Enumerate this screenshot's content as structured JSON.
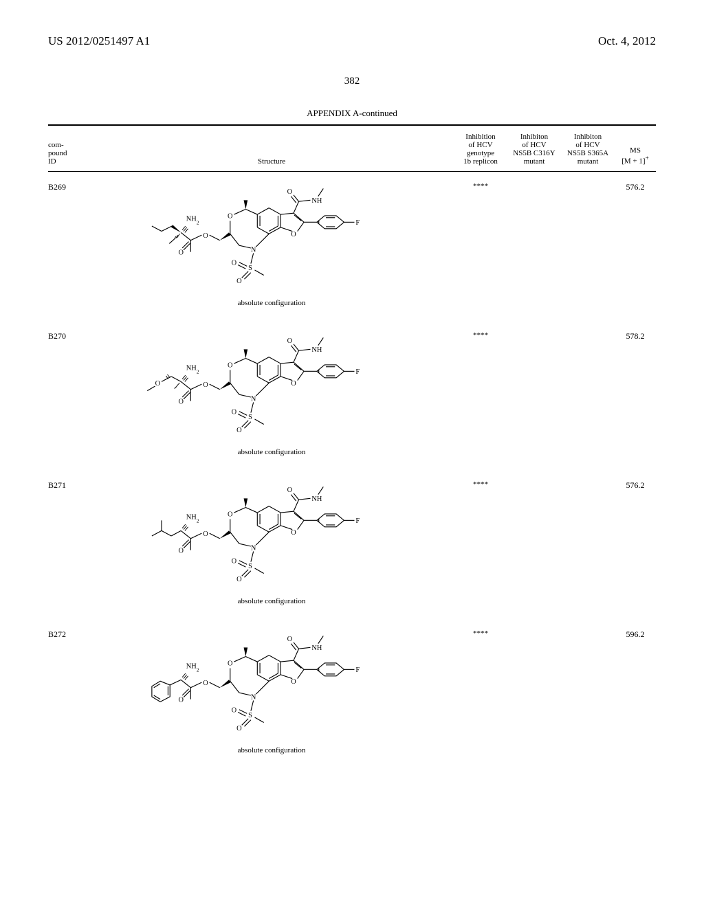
{
  "header": {
    "patent_number": "US 2012/0251497 A1",
    "date": "Oct. 4, 2012"
  },
  "page_number": "382",
  "appendix_title": "APPENDIX A-continued",
  "table": {
    "headers": {
      "compound_id": "com-\npound\nID",
      "structure": "Structure",
      "col1": "Inhibition\nof HCV\ngenotype\n1b replicon",
      "col2": "Inhibiton\nof HCV\nNS5B C316Y\nmutant",
      "col3": "Inhibiton\nof HCV\nNS5B S365A\nmutant",
      "ms": "MS\n[M + 1]⁺"
    },
    "rows": [
      {
        "id": "B269",
        "inhibition_1b": "****",
        "inhibition_c316y": "",
        "inhibition_s365a": "",
        "ms": "576.2",
        "config": "absolute configuration",
        "variant": "sec-butyl"
      },
      {
        "id": "B270",
        "inhibition_1b": "****",
        "inhibition_c316y": "",
        "inhibition_s365a": "",
        "ms": "578.2",
        "config": "absolute configuration",
        "variant": "methoxy"
      },
      {
        "id": "B271",
        "inhibition_1b": "****",
        "inhibition_c316y": "",
        "inhibition_s365a": "",
        "ms": "576.2",
        "config": "absolute configuration",
        "variant": "isobutyl"
      },
      {
        "id": "B272",
        "inhibition_1b": "****",
        "inhibition_c316y": "",
        "inhibition_s365a": "",
        "ms": "596.2",
        "config": "absolute configuration",
        "variant": "phenyl"
      }
    ]
  }
}
